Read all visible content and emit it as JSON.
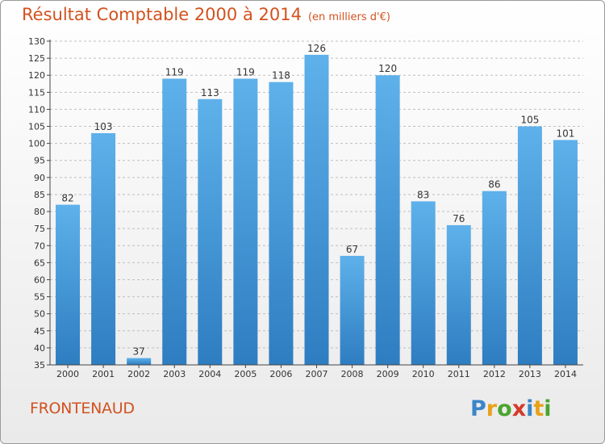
{
  "header": {
    "title": "Résultat Comptable 2000 à 2014",
    "subtitle": "(en milliers d'€)"
  },
  "footer": {
    "commune": "FRONTENAUD",
    "logo": "Proxiti"
  },
  "colors": {
    "bar_top": "#5eb1ea",
    "bar_bottom": "#2e7dc1",
    "title": "#d2521f",
    "grid": "#bfbfbf"
  },
  "chart_data": {
    "type": "bar",
    "title": "Résultat Comptable 2000 à 2014",
    "subtitle": "(en milliers d'€)",
    "categories": [
      "2000",
      "2001",
      "2002",
      "2003",
      "2004",
      "2005",
      "2006",
      "2007",
      "2008",
      "2009",
      "2010",
      "2011",
      "2012",
      "2013",
      "2014"
    ],
    "values": [
      82,
      103,
      37,
      119,
      113,
      119,
      118,
      126,
      67,
      120,
      83,
      76,
      86,
      105,
      101
    ],
    "ylim": [
      35,
      130
    ],
    "yticks": [
      35,
      40,
      45,
      50,
      55,
      60,
      65,
      70,
      75,
      80,
      85,
      90,
      95,
      100,
      105,
      110,
      115,
      120,
      125,
      130
    ],
    "grid": true,
    "data_labels": true
  }
}
